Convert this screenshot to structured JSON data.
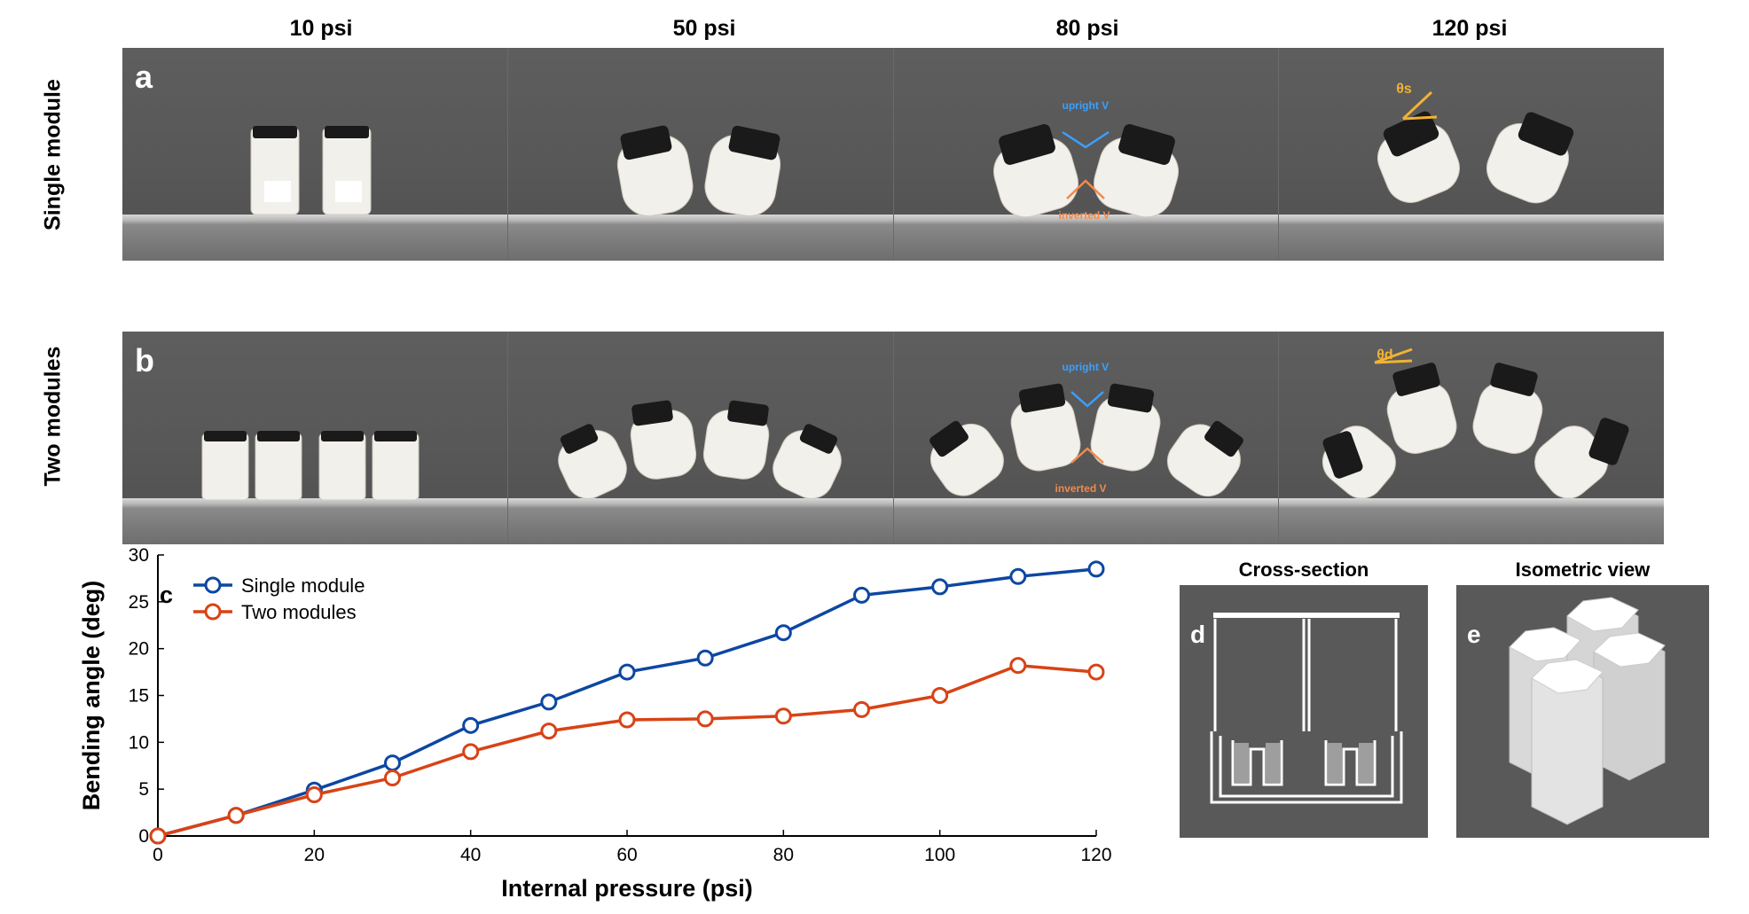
{
  "columns": [
    "10 psi",
    "50 psi",
    "80 psi",
    "120 psi"
  ],
  "rows": [
    {
      "label": "Single module",
      "letter": "a",
      "modules": 1
    },
    {
      "label": "Two modules",
      "letter": "b",
      "modules": 2
    }
  ],
  "annotations": {
    "upright": "upright V",
    "inverted": "inverted V",
    "theta_s": "θs",
    "theta_d": "θd",
    "upright_color": "#3aa0ff",
    "inverted_color": "#f08a4b",
    "theta_color": "#f2b233"
  },
  "chart_data": {
    "type": "line",
    "panel_letter": "c",
    "xlabel": "Internal pressure (psi)",
    "ylabel": "Bending angle (deg)",
    "xlim": [
      0,
      120
    ],
    "ylim": [
      0,
      30
    ],
    "xticks": [
      0,
      20,
      40,
      60,
      80,
      100,
      120
    ],
    "yticks": [
      0,
      5,
      10,
      15,
      20,
      25,
      30
    ],
    "x": [
      0,
      10,
      20,
      30,
      40,
      50,
      60,
      70,
      80,
      90,
      100,
      110,
      120
    ],
    "series": [
      {
        "name": "Single module",
        "color": "#0d47a1",
        "values": [
          0,
          2.2,
          4.9,
          7.8,
          11.8,
          14.3,
          17.5,
          19.0,
          21.7,
          25.7,
          26.6,
          27.7,
          28.5
        ]
      },
      {
        "name": "Two modules",
        "color": "#d84315",
        "values": [
          0,
          2.2,
          4.4,
          6.2,
          9.0,
          11.2,
          12.4,
          12.5,
          12.8,
          13.5,
          15.0,
          18.2,
          17.5
        ]
      }
    ],
    "grid": false,
    "legend": "top-left"
  },
  "renders": {
    "d": {
      "letter": "d",
      "title": "Cross-section"
    },
    "e": {
      "letter": "e",
      "title": "Isometric view"
    }
  }
}
